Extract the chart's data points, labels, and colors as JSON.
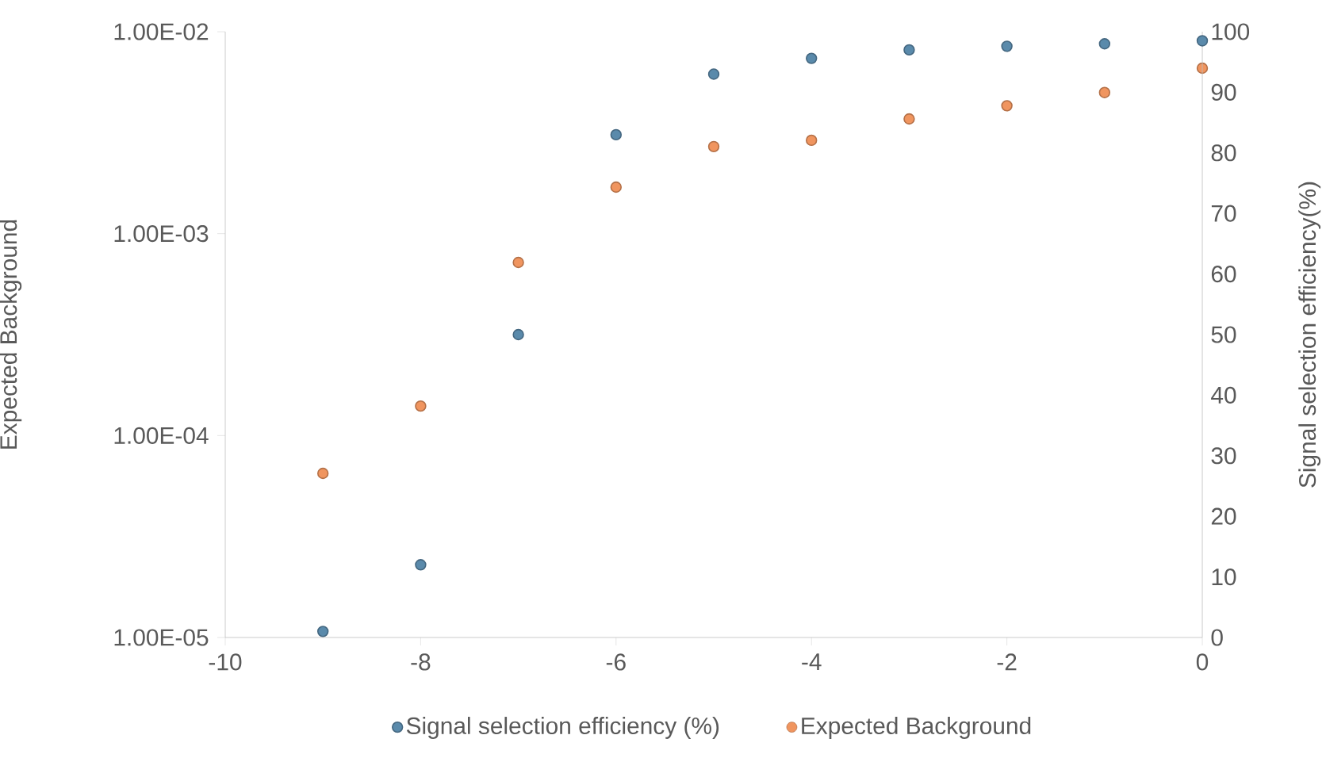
{
  "chart_data": {
    "type": "scatter",
    "x": [
      -9,
      -8,
      -7,
      -6,
      -5,
      -4,
      -3,
      -2,
      -1,
      0
    ],
    "series": [
      {
        "name": "Signal selection efficiency (%)",
        "color": "#5a8aab",
        "axis": "y2",
        "values": [
          1,
          12,
          50,
          83,
          93,
          95.6,
          97,
          97.6,
          98,
          98.5
        ]
      },
      {
        "name": "Expected Background",
        "color": "#f0955f",
        "values": [
          6.5e-05,
          0.00014,
          0.00072,
          0.0017,
          0.0027,
          0.0029,
          0.0037,
          0.0043,
          0.005,
          0.0066
        ]
      }
    ],
    "ylabel": "Expected Background",
    "y2label": "Signal  selection efficiency(%)",
    "xlim": [
      -10,
      0
    ],
    "xticks": [
      -10,
      -8,
      -6,
      -4,
      -2,
      0
    ],
    "ylim": [
      1e-05,
      0.01
    ],
    "yticks": [
      {
        "value": 1e-05,
        "label": "1.00E-05"
      },
      {
        "value": 0.0001,
        "label": "1.00E-04"
      },
      {
        "value": 0.001,
        "label": "1.00E-03"
      },
      {
        "value": 0.01,
        "label": "1.00E-02"
      }
    ],
    "y2lim": [
      0,
      100
    ],
    "y2ticks": [
      0,
      10,
      20,
      30,
      40,
      50,
      60,
      70,
      80,
      90,
      100
    ],
    "log": "y",
    "grid": false,
    "legend": "bottom",
    "marker": "circle"
  }
}
